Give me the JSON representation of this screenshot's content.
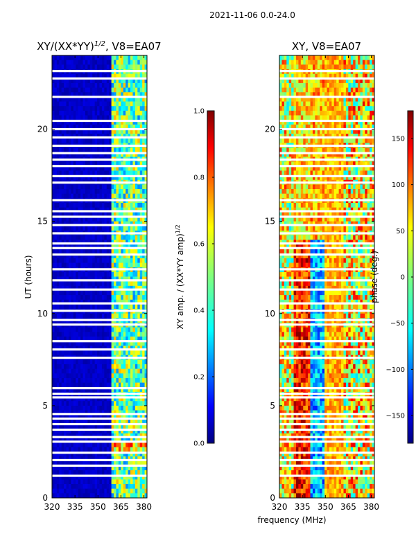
{
  "figure_title": "2021-11-06 0.0-24.0",
  "xlabel": "frequency (MHz)",
  "colormap": [
    "#00007f",
    "#0000ff",
    "#007fff",
    "#00ffff",
    "#7fff7f",
    "#ffff00",
    "#ff7f00",
    "#ff0000",
    "#7f0000"
  ],
  "chart_data": [
    {
      "type": "heatmap",
      "title_main": "XY/(XX*YY)",
      "title_exp": "1/2",
      "title_suffix": ", V8=EA07",
      "ylabel": "UT (hours)",
      "xlim": [
        320,
        382
      ],
      "ylim": [
        0,
        24
      ],
      "xticks": [
        320,
        335,
        350,
        365,
        380
      ],
      "yticks": [
        0,
        5,
        10,
        15,
        20
      ],
      "colorbar": {
        "label_main": "XY amp. / (XX*YY amp)",
        "label_exp": "1/2",
        "range": [
          0.0,
          1.0
        ],
        "ticks": [
          "0.0",
          "0.2",
          "0.4",
          "0.6",
          "0.8",
          "1.0"
        ]
      },
      "gap_hours": [
        1.2,
        1.75,
        2.05,
        2.45,
        3.05,
        3.3,
        3.7,
        4.0,
        4.3,
        4.55,
        5.45,
        5.65,
        5.95,
        7.6,
        8.05,
        8.5,
        9.4,
        9.65,
        10.15,
        10.55,
        11.3,
        11.8,
        12.4,
        13.2,
        13.55,
        13.8,
        14.35,
        14.8,
        15.25,
        15.55,
        16.15,
        17.1,
        17.45,
        18.0,
        18.35,
        18.7,
        19.1,
        19.55,
        20.0,
        20.45,
        21.75,
        22.75,
        23.15
      ]
    },
    {
      "type": "heatmap",
      "title_main": "XY, V8=EA07",
      "title_exp": "",
      "title_suffix": "",
      "ylabel": "",
      "xlim": [
        320,
        382
      ],
      "ylim": [
        0,
        24
      ],
      "xticks": [
        320,
        335,
        350,
        365,
        380
      ],
      "yticks": [
        0,
        5,
        10,
        15,
        20
      ],
      "colorbar": {
        "label_main": "phase (deg.)",
        "label_exp": "",
        "range": [
          -180,
          180
        ],
        "ticks": [
          "−150",
          "−100",
          "−50",
          "0",
          "50",
          "100",
          "150"
        ]
      },
      "gap_hours": [
        1.2,
        1.75,
        2.05,
        2.45,
        3.05,
        3.3,
        3.7,
        4.0,
        4.3,
        4.55,
        5.45,
        5.65,
        5.95,
        7.6,
        8.05,
        8.5,
        9.4,
        9.65,
        10.15,
        10.55,
        11.3,
        11.8,
        12.4,
        13.2,
        13.55,
        13.8,
        14.35,
        14.8,
        15.25,
        15.55,
        16.15,
        17.1,
        17.45,
        18.0,
        18.35,
        18.7,
        19.1,
        19.55,
        20.0,
        20.45,
        21.75,
        22.75,
        23.15
      ]
    }
  ]
}
